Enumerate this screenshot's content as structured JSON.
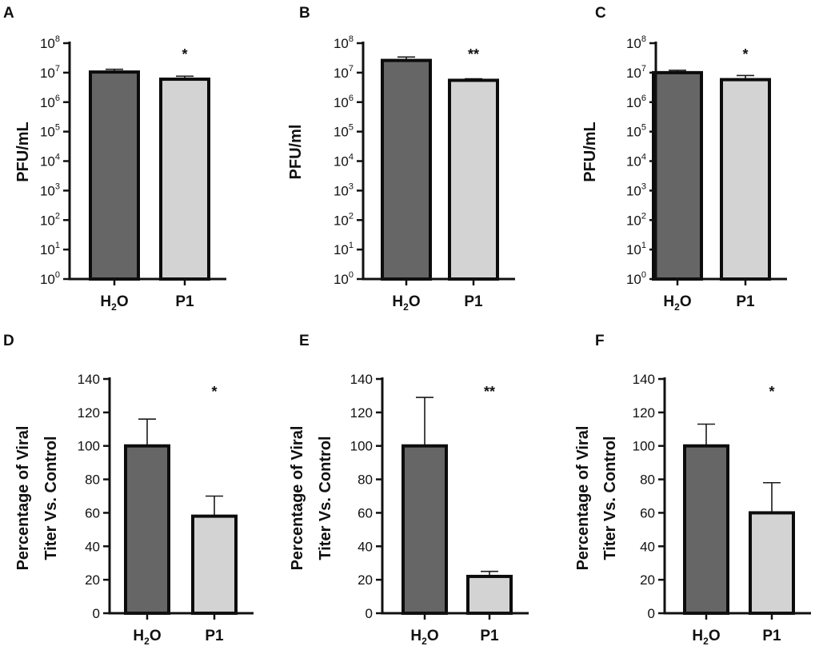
{
  "colors": {
    "h2o_bar": "#666666",
    "p1_bar": "#d3d3d3",
    "axis": "#111111"
  },
  "chart_data": [
    {
      "panel": "A",
      "type": "bar",
      "scale": "log",
      "ylabel": "PFU/mL",
      "categories": [
        {
          "main": "H",
          "sub": "2",
          "rest": "O"
        },
        {
          "main": "P1"
        }
      ],
      "values": [
        10500000.0,
        6000000.0
      ],
      "errors_upper": [
        13000000.0,
        7600000.0
      ],
      "significance": "*",
      "yticks": [
        {
          "base": "10",
          "exp": "0"
        },
        {
          "base": "10",
          "exp": "1"
        },
        {
          "base": "10",
          "exp": "2"
        },
        {
          "base": "10",
          "exp": "3"
        },
        {
          "base": "10",
          "exp": "4"
        },
        {
          "base": "10",
          "exp": "5"
        },
        {
          "base": "10",
          "exp": "6"
        },
        {
          "base": "10",
          "exp": "7"
        },
        {
          "base": "10",
          "exp": "8"
        }
      ],
      "ylim": [
        1,
        100000000.0
      ]
    },
    {
      "panel": "B",
      "type": "bar",
      "scale": "log",
      "ylabel": "PFU/ml",
      "categories": [
        {
          "main": "H",
          "sub": "2",
          "rest": "O"
        },
        {
          "main": "P1"
        }
      ],
      "values": [
        26000000.0,
        5500000.0
      ],
      "errors_upper": [
        34000000.0,
        6200000.0
      ],
      "significance": "**",
      "yticks": [
        {
          "base": "10",
          "exp": "0"
        },
        {
          "base": "10",
          "exp": "1"
        },
        {
          "base": "10",
          "exp": "2"
        },
        {
          "base": "10",
          "exp": "3"
        },
        {
          "base": "10",
          "exp": "4"
        },
        {
          "base": "10",
          "exp": "5"
        },
        {
          "base": "10",
          "exp": "6"
        },
        {
          "base": "10",
          "exp": "7"
        },
        {
          "base": "10",
          "exp": "8"
        }
      ],
      "ylim": [
        1,
        100000000.0
      ]
    },
    {
      "panel": "C",
      "type": "bar",
      "scale": "log",
      "ylabel": "PFU/mL",
      "categories": [
        {
          "main": "H",
          "sub": "2",
          "rest": "O"
        },
        {
          "main": "P1"
        }
      ],
      "values": [
        10000000.0,
        5800000.0
      ],
      "errors_upper": [
        12000000.0,
        8000000.0
      ],
      "significance": "*",
      "yticks": [
        {
          "base": "10",
          "exp": "0"
        },
        {
          "base": "10",
          "exp": "1"
        },
        {
          "base": "10",
          "exp": "2"
        },
        {
          "base": "10",
          "exp": "3"
        },
        {
          "base": "10",
          "exp": "4"
        },
        {
          "base": "10",
          "exp": "5"
        },
        {
          "base": "10",
          "exp": "6"
        },
        {
          "base": "10",
          "exp": "7"
        },
        {
          "base": "10",
          "exp": "8"
        }
      ],
      "ylim": [
        1,
        100000000.0
      ]
    },
    {
      "panel": "D",
      "type": "bar",
      "scale": "linear",
      "ylabel": [
        "Percentage of Viral",
        "Titer Vs. Control"
      ],
      "categories": [
        {
          "main": "H",
          "sub": "2",
          "rest": "O"
        },
        {
          "main": "P1"
        }
      ],
      "values": [
        100,
        58
      ],
      "errors_upper": [
        116,
        70
      ],
      "significance": "*",
      "yticks": [
        "0",
        "20",
        "40",
        "60",
        "80",
        "100",
        "120",
        "140"
      ],
      "ylim": [
        0,
        140
      ]
    },
    {
      "panel": "E",
      "type": "bar",
      "scale": "linear",
      "ylabel": [
        "Percentage of Viral",
        "Titer Vs. Control"
      ],
      "categories": [
        {
          "main": "H",
          "sub": "2",
          "rest": "O"
        },
        {
          "main": "P1"
        }
      ],
      "values": [
        100,
        22
      ],
      "errors_upper": [
        129,
        25
      ],
      "significance": "**",
      "yticks": [
        "0",
        "20",
        "40",
        "60",
        "80",
        "100",
        "120",
        "140"
      ],
      "ylim": [
        0,
        140
      ]
    },
    {
      "panel": "F",
      "type": "bar",
      "scale": "linear",
      "ylabel": [
        "Percentage of Viral",
        "Titer Vs. Control"
      ],
      "categories": [
        {
          "main": "H",
          "sub": "2",
          "rest": "O"
        },
        {
          "main": "P1"
        }
      ],
      "values": [
        100,
        60
      ],
      "errors_upper": [
        113,
        78
      ],
      "significance": "*",
      "yticks": [
        "0",
        "20",
        "40",
        "60",
        "80",
        "100",
        "120",
        "140"
      ],
      "ylim": [
        0,
        140
      ]
    }
  ]
}
